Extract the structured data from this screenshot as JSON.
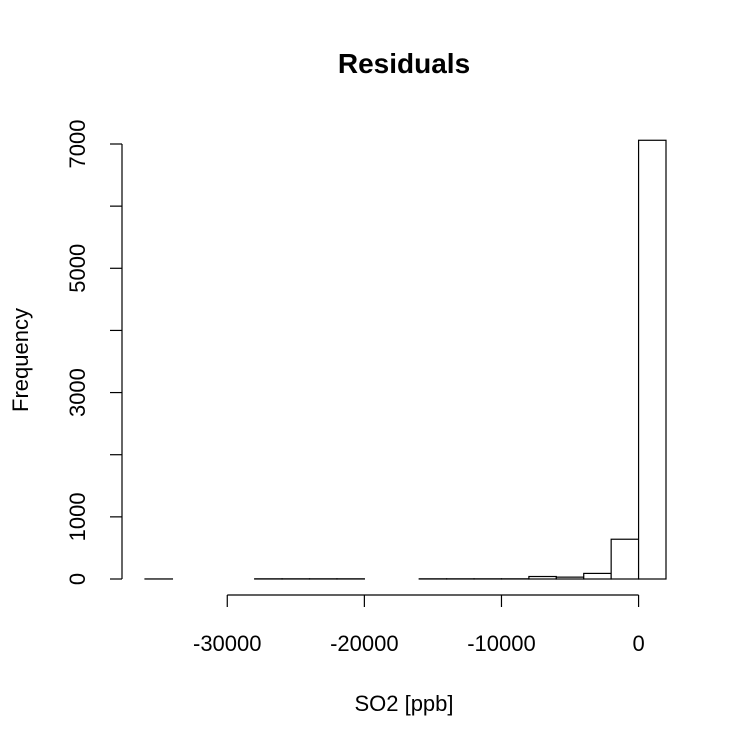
{
  "chart_data": {
    "type": "bar",
    "title": "Residuals",
    "xlabel": "SO2 [ppb]",
    "ylabel": "Frequency",
    "xlim": [
      -36000,
      2000
    ],
    "ylim": [
      0,
      7000
    ],
    "x_ticks": [
      -30000,
      -20000,
      -10000,
      0
    ],
    "x_tick_labels": [
      "-30000",
      "-20000",
      "-10000",
      "0"
    ],
    "y_ticks": [
      0,
      1000,
      2000,
      3000,
      4000,
      5000,
      6000,
      7000
    ],
    "y_tick_labels": [
      "0",
      "1000",
      "",
      "3000",
      "",
      "5000",
      "",
      "7000"
    ],
    "bins": [
      {
        "x0": -36000,
        "x1": -34000,
        "count": 1
      },
      {
        "x0": -34000,
        "x1": -32000,
        "count": 0
      },
      {
        "x0": -32000,
        "x1": -30000,
        "count": 0
      },
      {
        "x0": -30000,
        "x1": -28000,
        "count": 0
      },
      {
        "x0": -28000,
        "x1": -26000,
        "count": 3
      },
      {
        "x0": -26000,
        "x1": -24000,
        "count": 3
      },
      {
        "x0": -24000,
        "x1": -22000,
        "count": 3
      },
      {
        "x0": -22000,
        "x1": -20000,
        "count": 3
      },
      {
        "x0": -20000,
        "x1": -18000,
        "count": 0
      },
      {
        "x0": -18000,
        "x1": -16000,
        "count": 0
      },
      {
        "x0": -16000,
        "x1": -14000,
        "count": 3
      },
      {
        "x0": -14000,
        "x1": -12000,
        "count": 3
      },
      {
        "x0": -12000,
        "x1": -10000,
        "count": 3
      },
      {
        "x0": -10000,
        "x1": -8000,
        "count": 3
      },
      {
        "x0": -8000,
        "x1": -6000,
        "count": 40
      },
      {
        "x0": -6000,
        "x1": -4000,
        "count": 30
      },
      {
        "x0": -4000,
        "x1": -2000,
        "count": 90
      },
      {
        "x0": -2000,
        "x1": 0,
        "count": 640
      },
      {
        "x0": 0,
        "x1": 2000,
        "count": 7060
      }
    ]
  }
}
